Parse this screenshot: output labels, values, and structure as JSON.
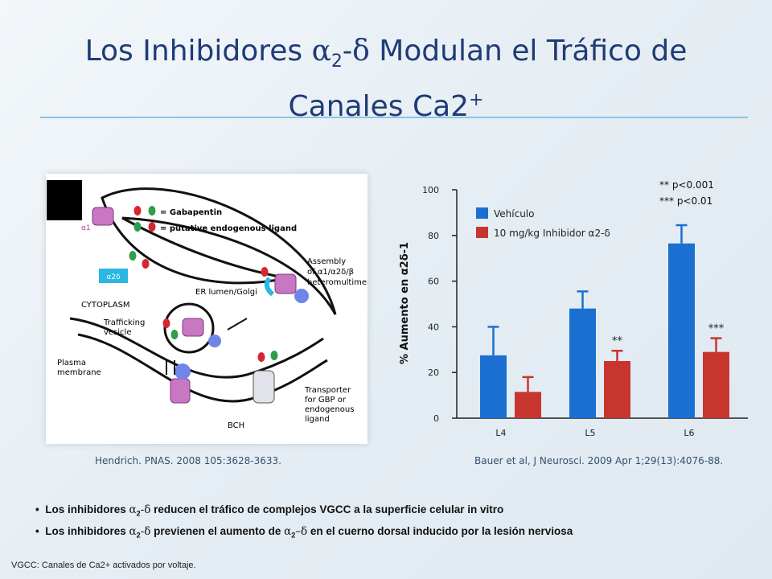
{
  "slide": {
    "title_part1": "Los Inhibidores ",
    "title_alpha": "α",
    "title_sub": "2",
    "title_dash_delta": "-δ",
    "title_part2": " Modulan el Tráfico de",
    "title_line2": "Canales Ca2",
    "title_sup": "+"
  },
  "figure": {
    "labels": {
      "gabapentin": "= Gabapentin",
      "ligand": "= putative endogenous ligand",
      "alpha1": "α1",
      "a2d": "α2δ",
      "cytoplasm": "CYTOPLASM",
      "er": "ER lumen/Golgi",
      "assembly": "Assembly",
      "assembly_of": "of α1/α2δ/β",
      "heteromultimer": "heteromultimer",
      "beta": "β",
      "trafficking": "Trafficking",
      "vesicle": "vesicle",
      "plasma": "Plasma",
      "membrane": "membrane",
      "bch": "BCH",
      "transporter": "Transporter",
      "for_gbp": "for GBP or",
      "endogenous": "endogenous",
      "ligand_word": "ligand"
    },
    "colors": {
      "gabapentin": "#d8262e",
      "ligand": "#2e9e4a",
      "channel": "#c977c2",
      "a2d": "#29b7e3",
      "beta": "#6f86e8"
    }
  },
  "citations": {
    "left": "Hendrich. PNAS. 2008 105:3628-3633.",
    "right": "Bauer et al, J Neurosci. 2009 Apr 1;29(13):4076-88."
  },
  "chart_data": {
    "type": "bar",
    "ylabel": "% Aumento en α2δ-1",
    "ylim": [
      0,
      100
    ],
    "yticks": [
      0,
      20,
      40,
      60,
      80,
      100
    ],
    "categories": [
      "L4",
      "L5",
      "L6"
    ],
    "series": [
      {
        "name": "Vehículo",
        "color": "#1a6fd1",
        "values": [
          27.5,
          48,
          76.5
        ],
        "errors": [
          12.5,
          7.5,
          8
        ]
      },
      {
        "name": "10 mg/kg Inhibidor α2-δ",
        "color": "#c8352f",
        "values": [
          11.5,
          25,
          29
        ],
        "errors": [
          6.5,
          4.5,
          6
        ]
      }
    ],
    "annotations": [
      {
        "text": "**",
        "category": "L5",
        "series": 1
      },
      {
        "text": "***",
        "category": "L6",
        "series": 1
      }
    ],
    "significance_note": [
      "** p<0.001",
      "*** p<0.01"
    ],
    "legend_position": "top-left"
  },
  "bullets": [
    {
      "pre": "Los inhibidores ",
      "greek": "α",
      "sub": "2",
      "greek2": "-δ",
      "post": "  reducen el tráfico de complejos VGCC a la superficie celular in vitro"
    },
    {
      "pre": "Los inhibidores ",
      "greek": "α",
      "sub": "2",
      "greek2": "-δ",
      "post": "  previenen el aumento de ",
      "greek3": "α",
      "sub3": "2",
      "greek4": "–δ",
      "post2": " en el cuerno dorsal inducido por la lesión nerviosa"
    }
  ],
  "footnote": "VGCC: Canales de Ca2+ activados por voltaje."
}
